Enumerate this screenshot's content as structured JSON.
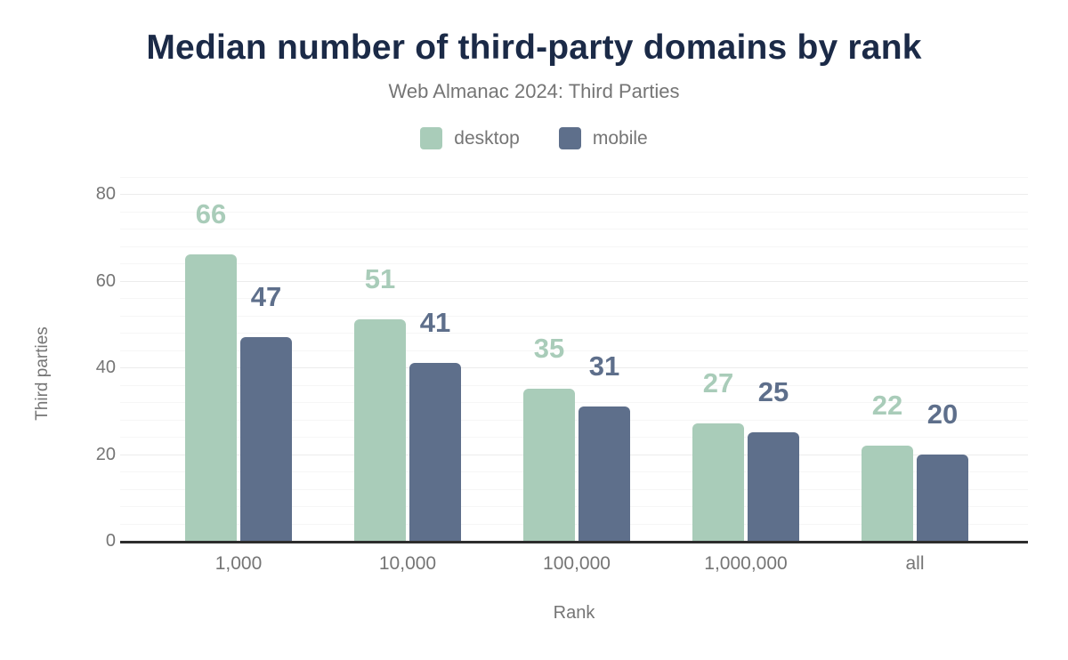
{
  "header": {
    "title": "Median number of third-party domains by rank",
    "subtitle": "Web Almanac 2024: Third Parties"
  },
  "chart_data": {
    "type": "bar",
    "title": "Median number of third-party domains by rank",
    "subtitle": "Web Almanac 2024: Third Parties",
    "categories": [
      "1,000",
      "10,000",
      "100,000",
      "1,000,000",
      "all"
    ],
    "series": [
      {
        "name": "desktop",
        "color": "#a9ccb9",
        "values": [
          66,
          51,
          35,
          27,
          22
        ]
      },
      {
        "name": "mobile",
        "color": "#5e6f8b",
        "values": [
          47,
          41,
          31,
          25,
          20
        ]
      }
    ],
    "xlabel": "Rank",
    "ylabel": "Third parties",
    "ylim": [
      0,
      80
    ],
    "yticks": [
      0,
      20,
      40,
      60,
      80
    ],
    "minor_grid_step": 4,
    "grid": "horizontal, faint minor lines with slightly darker major lines",
    "legend_position": "top center",
    "data_labels": true
  },
  "colors": {
    "title_text": "#1b2a47",
    "secondary_text": "#757575",
    "axis_line": "#2d2d2d",
    "grid_major": "#ececec",
    "grid_minor": "#f6f6f6",
    "background": "#ffffff",
    "desktop": "#a9ccb9",
    "mobile": "#5e6f8b"
  }
}
